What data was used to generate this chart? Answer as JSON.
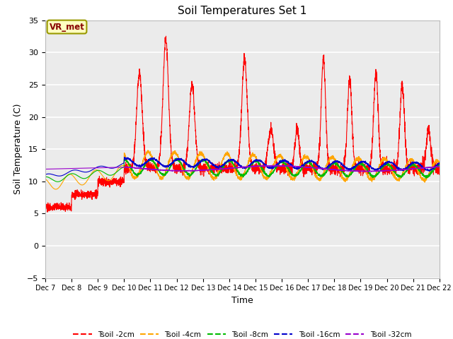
{
  "title": "Soil Temperatures Set 1",
  "xlabel": "Time",
  "ylabel": "Soil Temperature (C)",
  "ylim": [
    -5,
    35
  ],
  "xlim": [
    0,
    360
  ],
  "xtick_labels": [
    "Dec 7",
    "Dec 8",
    "Dec 9",
    "Dec 10",
    "Dec 11",
    "Dec 12",
    "Dec 13",
    "Dec 14",
    "Dec 15",
    "Dec 16",
    "Dec 17",
    "Dec 18",
    "Dec 19",
    "Dec 20",
    "Dec 21",
    "Dec 22"
  ],
  "bg_color": "#ebebeb",
  "annotation_text": "VR_met",
  "annotation_bg": "#ffffc0",
  "annotation_border": "#999900",
  "legend_labels": [
    "Tsoil -2cm",
    "Tsoil -4cm",
    "Tsoil -8cm",
    "Tsoil -16cm",
    "Tsoil -32cm"
  ],
  "line_colors": [
    "#ff0000",
    "#ffa500",
    "#00bb00",
    "#0000cc",
    "#9900cc"
  ]
}
